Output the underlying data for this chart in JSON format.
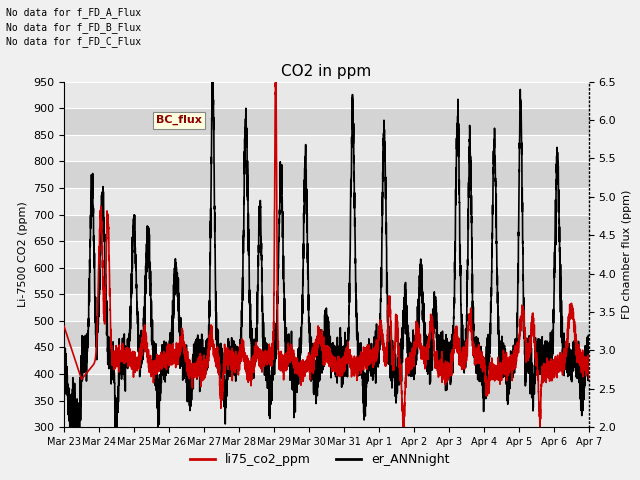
{
  "title": "CO2 in ppm",
  "ylabel_left": "Li-7500 CO2 (ppm)",
  "ylabel_right": "FD chamber flux (ppm)",
  "ylim_left": [
    300,
    950
  ],
  "ylim_right": [
    2.0,
    6.5
  ],
  "yticks_left": [
    300,
    350,
    400,
    450,
    500,
    550,
    600,
    650,
    700,
    750,
    800,
    850,
    900,
    950
  ],
  "yticks_right": [
    2.0,
    2.5,
    3.0,
    3.5,
    4.0,
    4.5,
    5.0,
    5.5,
    6.0,
    6.5
  ],
  "annotations": [
    "No data for f_FD_A_Flux",
    "No data for f_FD_B_Flux",
    "No data for f_FD_C_Flux"
  ],
  "legend_box_label": "BC_flux",
  "legend_entries": [
    {
      "label": "li75_co2_ppm",
      "color": "#cc0000",
      "lw": 1.2
    },
    {
      "label": "er_ANNnight",
      "color": "#000000",
      "lw": 1.2
    }
  ],
  "xtick_labels": [
    "Mar 23",
    "Mar 24",
    "Mar 25",
    "Mar 26",
    "Mar 27",
    "Mar 28",
    "Mar 29",
    "Mar 30",
    "Mar 31",
    "Apr 1",
    "Apr 2",
    "Apr 3",
    "Apr 4",
    "Apr 5",
    "Apr 6",
    "Apr 7"
  ],
  "num_days": 15,
  "band_colors": [
    "#e8e8e8",
    "#d4d4d4"
  ],
  "grid_line_color": "#ffffff"
}
